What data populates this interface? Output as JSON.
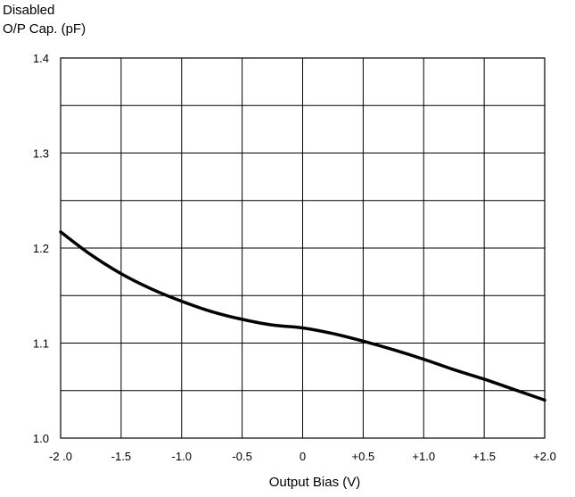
{
  "chart_data": {
    "type": "line",
    "title": "",
    "ylabel_lines": [
      "Disabled",
      "O/P Cap. (pF)"
    ],
    "xlabel": "Output Bias  (V)",
    "xlim": [
      -2.0,
      2.0
    ],
    "ylim": [
      1.0,
      1.4
    ],
    "grid": true,
    "x_ticks": [
      {
        "value": -2.0,
        "label": "-2 .0"
      },
      {
        "value": -1.5,
        "label": "-1.5"
      },
      {
        "value": -1.0,
        "label": "-1.0"
      },
      {
        "value": -0.5,
        "label": "-0.5"
      },
      {
        "value": 0.0,
        "label": "0"
      },
      {
        "value": 0.5,
        "label": "+0.5"
      },
      {
        "value": 1.0,
        "label": "+1.0"
      },
      {
        "value": 1.5,
        "label": "+1.5"
      },
      {
        "value": 2.0,
        "label": "+2.0"
      }
    ],
    "y_ticks": [
      {
        "value": 1.0,
        "label": "1.0"
      },
      {
        "value": 1.1,
        "label": "1.1"
      },
      {
        "value": 1.2,
        "label": "1.2"
      },
      {
        "value": 1.3,
        "label": "1.3"
      },
      {
        "value": 1.4,
        "label": "1.4"
      }
    ],
    "y_minor_grid": [
      1.05,
      1.15,
      1.25,
      1.35
    ],
    "series": [
      {
        "color": "#000000",
        "x": [
          -2.0,
          -1.75,
          -1.5,
          -1.25,
          -1.0,
          -0.75,
          -0.5,
          -0.25,
          0.0,
          0.25,
          0.5,
          0.75,
          1.0,
          1.25,
          1.5,
          1.75,
          2.0
        ],
        "y": [
          1.217,
          1.193,
          1.173,
          1.157,
          1.144,
          1.133,
          1.125,
          1.119,
          1.116,
          1.11,
          1.102,
          1.093,
          1.083,
          1.072,
          1.062,
          1.051,
          1.04
        ]
      }
    ]
  }
}
